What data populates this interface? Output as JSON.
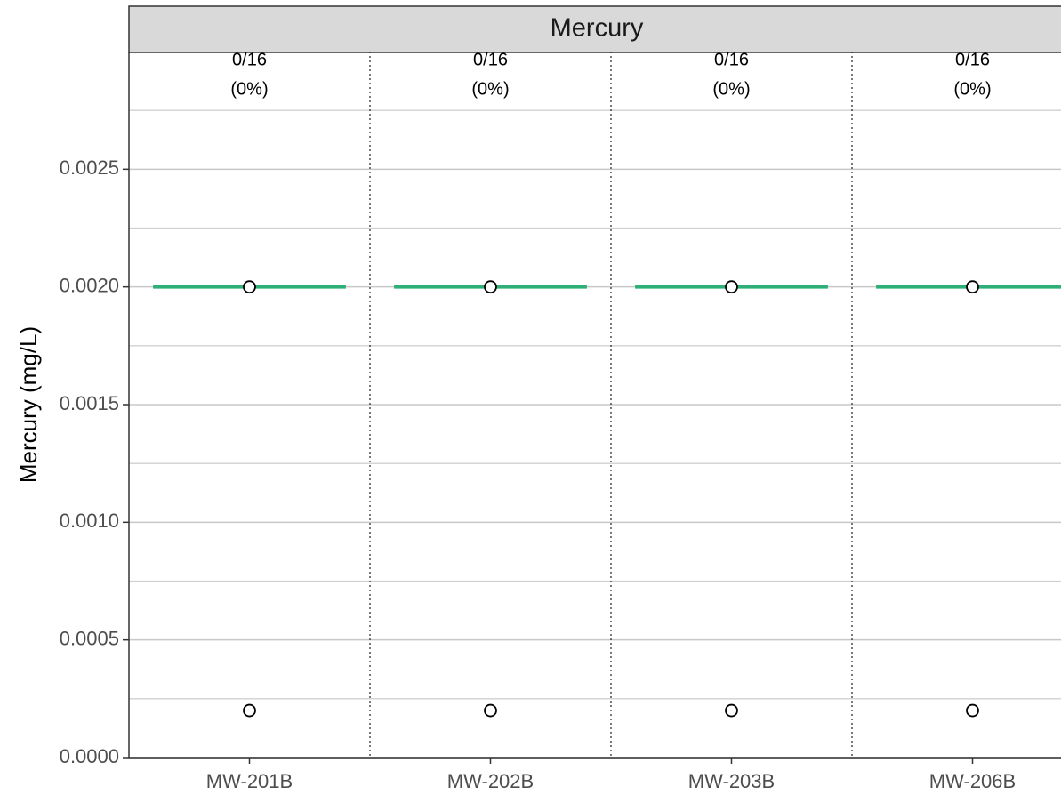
{
  "chart_data": {
    "type": "strip",
    "facet": "Mercury",
    "y_label": "Mercury (mg/L)",
    "categories": [
      "MW-201B",
      "MW-202B",
      "MW-203B",
      "MW-206B"
    ],
    "counts": [
      "0/16",
      "0/16",
      "0/16",
      "0/16"
    ],
    "percents": [
      "(0%)",
      "(0%)",
      "(0%)",
      "(0%)"
    ],
    "lines": {
      "color": "#2eaf78",
      "values": [
        0.002,
        0.002,
        0.002,
        0.002
      ]
    },
    "points": [
      [
        0.002,
        0.0002
      ],
      [
        0.002,
        0.0002
      ],
      [
        0.002,
        0.0002
      ],
      [
        0.002,
        0.0002
      ]
    ],
    "ylim": [
      0,
      0.003
    ],
    "yticks": [
      {
        "value": 0,
        "label": "0.0000"
      },
      {
        "value": 0.0005,
        "label": "0.0005"
      },
      {
        "value": 0.001,
        "label": "0.0010"
      },
      {
        "value": 0.0015,
        "label": "0.0015"
      },
      {
        "value": 0.002,
        "label": "0.0020"
      },
      {
        "value": 0.0025,
        "label": "0.0025"
      }
    ],
    "grid": true
  }
}
